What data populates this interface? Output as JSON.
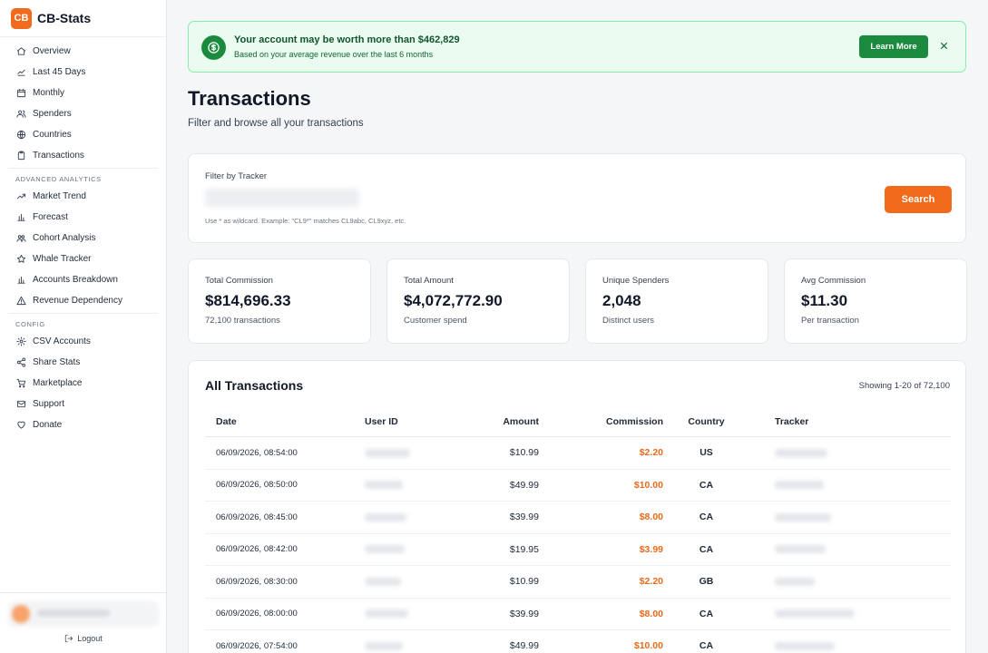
{
  "brand": {
    "logo": "CB",
    "name": "CB-Stats"
  },
  "sidebar": {
    "main_items": [
      {
        "label": "Overview",
        "icon": "home-icon"
      },
      {
        "label": "Last 45 Days",
        "icon": "chart-up-icon"
      },
      {
        "label": "Monthly",
        "icon": "calendar-icon"
      },
      {
        "label": "Spenders",
        "icon": "users-icon"
      },
      {
        "label": "Countries",
        "icon": "globe-icon"
      },
      {
        "label": "Transactions",
        "icon": "clipboard-icon"
      }
    ],
    "advanced_title": "ADVANCED ANALYTICS",
    "advanced_items": [
      {
        "label": "Market Trend",
        "icon": "trend-icon"
      },
      {
        "label": "Forecast",
        "icon": "bar-chart-icon"
      },
      {
        "label": "Cohort Analysis",
        "icon": "cohort-icon"
      },
      {
        "label": "Whale Tracker",
        "icon": "star-icon"
      },
      {
        "label": "Accounts Breakdown",
        "icon": "bar-chart-icon"
      },
      {
        "label": "Revenue Dependency",
        "icon": "warning-icon"
      }
    ],
    "config_title": "CONFIG",
    "config_items": [
      {
        "label": "CSV Accounts",
        "icon": "gear-icon"
      },
      {
        "label": "Share Stats",
        "icon": "share-icon"
      },
      {
        "label": "Marketplace",
        "icon": "cart-icon"
      },
      {
        "label": "Support",
        "icon": "mail-icon"
      },
      {
        "label": "Donate",
        "icon": "heart-icon"
      }
    ],
    "logout_label": "Logout"
  },
  "banner": {
    "title": "Your account may be worth more than $462,829",
    "subtitle": "Based on your average revenue over the last 6 months",
    "button": "Learn More"
  },
  "page": {
    "title": "Transactions",
    "subtitle": "Filter and browse all your transactions"
  },
  "filter": {
    "label": "Filter by Tracker",
    "hint": "Use * as wildcard. Example: \"CL9*\" matches CL9abc, CL9xyz, etc.",
    "button": "Search"
  },
  "stats": [
    {
      "label": "Total Commission",
      "value": "$814,696.33",
      "sub": "72,100 transactions"
    },
    {
      "label": "Total Amount",
      "value": "$4,072,772.90",
      "sub": "Customer spend"
    },
    {
      "label": "Unique Spenders",
      "value": "2,048",
      "sub": "Distinct users"
    },
    {
      "label": "Avg Commission",
      "value": "$11.30",
      "sub": "Per transaction"
    }
  ],
  "transactions": {
    "title": "All Transactions",
    "showing": "Showing 1-20 of 72,100",
    "columns": [
      "Date",
      "User ID",
      "Amount",
      "Commission",
      "Country",
      "Tracker"
    ],
    "rows": [
      {
        "date": "06/09/2026, 08:54:00",
        "amount": "$10.99",
        "commission": "$2.20",
        "country": "US"
      },
      {
        "date": "06/09/2026, 08:50:00",
        "amount": "$49.99",
        "commission": "$10.00",
        "country": "CA"
      },
      {
        "date": "06/09/2026, 08:45:00",
        "amount": "$39.99",
        "commission": "$8.00",
        "country": "CA"
      },
      {
        "date": "06/09/2026, 08:42:00",
        "amount": "$19.95",
        "commission": "$3.99",
        "country": "CA"
      },
      {
        "date": "06/09/2026, 08:30:00",
        "amount": "$10.99",
        "commission": "$2.20",
        "country": "GB"
      },
      {
        "date": "06/09/2026, 08:00:00",
        "amount": "$39.99",
        "commission": "$8.00",
        "country": "CA"
      },
      {
        "date": "06/09/2026, 07:54:00",
        "amount": "$49.99",
        "commission": "$10.00",
        "country": "CA"
      }
    ]
  },
  "colors": {
    "accent": "#f26b1d",
    "success": "#1b8a3e",
    "banner_bg": "#eafbf0"
  }
}
